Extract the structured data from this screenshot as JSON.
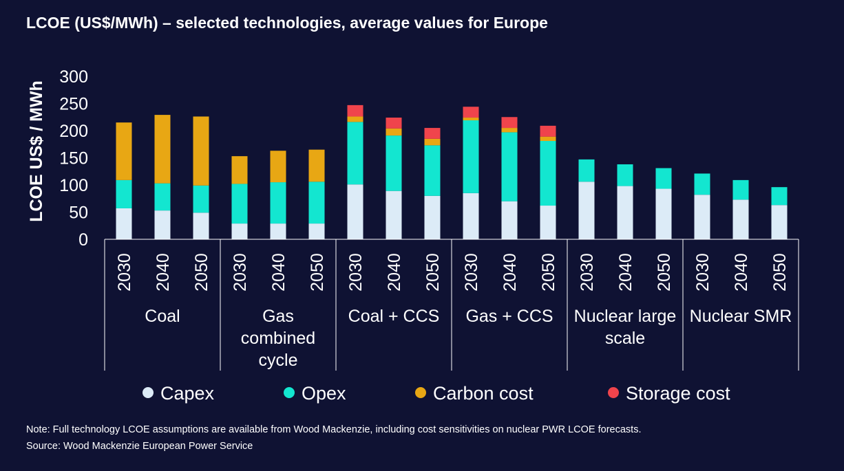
{
  "chart_data": {
    "type": "bar",
    "stacked": true,
    "title": "LCOE (US$/MWh) – selected technologies, average values for Europe",
    "ylabel": "LCOE US$ / MWh",
    "ylim": [
      0,
      300
    ],
    "yticks": [
      0,
      50,
      100,
      150,
      200,
      250,
      300
    ],
    "grid": false,
    "legend_position": "bottom",
    "groups": [
      {
        "label_lines": [
          "Coal"
        ],
        "years": [
          "2030",
          "2040",
          "2050"
        ]
      },
      {
        "label_lines": [
          "Gas",
          "combined",
          "cycle"
        ],
        "years": [
          "2030",
          "2040",
          "2050"
        ]
      },
      {
        "label_lines": [
          "Coal + CCS"
        ],
        "years": [
          "2030",
          "2040",
          "2050"
        ]
      },
      {
        "label_lines": [
          "Gas + CCS"
        ],
        "years": [
          "2030",
          "2040",
          "2050"
        ]
      },
      {
        "label_lines": [
          "Nuclear large",
          "scale"
        ],
        "years": [
          "2030",
          "2040",
          "2050"
        ]
      },
      {
        "label_lines": [
          "Nuclear SMR"
        ],
        "years": [
          "2030",
          "2040",
          "2050"
        ]
      }
    ],
    "series": [
      {
        "name": "Capex",
        "color": "#dcebf7",
        "values": [
          57,
          53,
          49,
          29,
          29,
          29,
          101,
          89,
          80,
          85,
          70,
          62,
          106,
          98,
          93,
          82,
          73,
          63
        ]
      },
      {
        "name": "Opex",
        "color": "#13e6d0",
        "values": [
          52,
          50,
          50,
          73,
          76,
          77,
          115,
          102,
          93,
          134,
          127,
          119,
          41,
          40,
          38,
          39,
          36,
          33
        ]
      },
      {
        "name": "Carbon cost",
        "color": "#e8a714",
        "values": [
          106,
          126,
          127,
          51,
          58,
          59,
          10,
          13,
          12,
          5,
          8,
          8,
          0,
          0,
          0,
          0,
          0,
          0
        ]
      },
      {
        "name": "Storage cost",
        "color": "#f0444c",
        "values": [
          0,
          0,
          0,
          0,
          0,
          0,
          21,
          20,
          20,
          20,
          20,
          20,
          0,
          0,
          0,
          0,
          0,
          0
        ]
      }
    ]
  },
  "notes": {
    "note": "Note: Full technology LCOE assumptions are available from Wood Mackenzie, including cost sensitivities on nuclear PWR LCOE forecasts.",
    "source": "Source: Wood Mackenzie European Power Service"
  }
}
